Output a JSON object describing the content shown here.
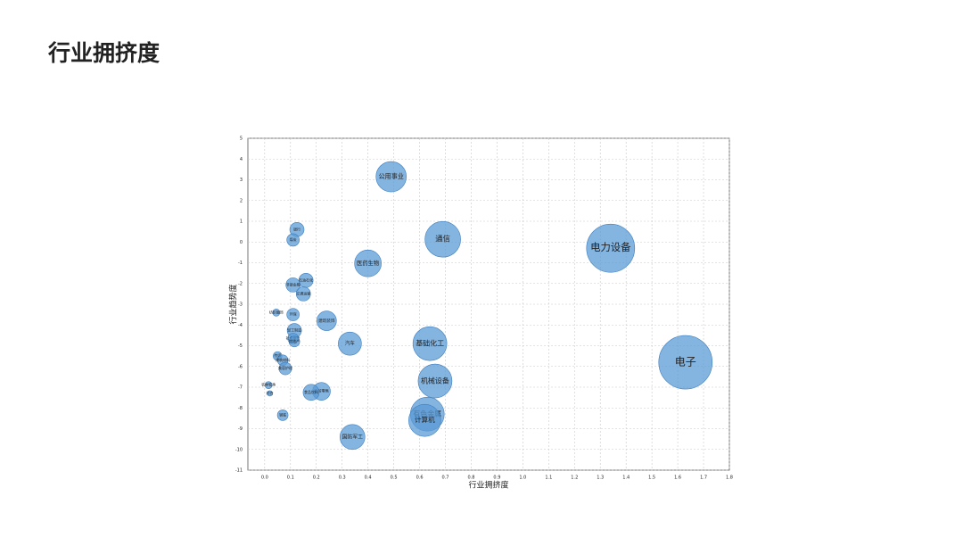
{
  "chart_data": {
    "type": "bubble",
    "title": "行业拥挤度",
    "xlabel": "行业拥挤度",
    "ylabel": "行业趋势度",
    "color": "#5b9bd5",
    "grid": true,
    "xlim": [
      -0.065,
      1.8
    ],
    "ylim": [
      -11,
      5
    ],
    "xticks": [
      {
        "value": 0,
        "label": "0.0"
      },
      0.1,
      0.2,
      0.3,
      0.4,
      0.5,
      0.6,
      0.7,
      0.8,
      0.9,
      {
        "value": 1,
        "label": "1.0"
      },
      1.1,
      1.2,
      1.3,
      1.4,
      1.5,
      1.6,
      1.7,
      1.8
    ],
    "yticks": [
      -11,
      -10,
      -9,
      -8,
      -7,
      -6,
      -5,
      -4,
      -3,
      -2,
      -1,
      0,
      1,
      2,
      3,
      4,
      5
    ],
    "categories": [
      "公用事业",
      "通信",
      "电力设备",
      "电子",
      "医药生物",
      "基础化工",
      "机械设备",
      "有色金属",
      "计算机",
      "国防军工",
      "汽车",
      "建筑装饰",
      "商贸零售",
      "食品饮料",
      "银行",
      "煤炭",
      "石油石化",
      "非银金融",
      "交通运输",
      "环保",
      "纺织服饰",
      "轻工制造",
      "社会服务",
      "房地产",
      "传媒",
      "建筑材料",
      "美容护理",
      "农林牧渔",
      "综合",
      "钢铁"
    ],
    "x": [
      0.49,
      0.69,
      1.34,
      1.63,
      0.4,
      0.64,
      0.66,
      0.63,
      0.62,
      0.34,
      0.33,
      0.24,
      0.22,
      0.18,
      0.125,
      0.11,
      0.16,
      0.11,
      0.15,
      0.11,
      0.045,
      0.115,
      0.11,
      0.115,
      0.05,
      0.07,
      0.08,
      0.015,
      0.02,
      0.07
    ],
    "values": [
      3.15,
      0.13,
      -0.3,
      -5.8,
      -1.03,
      -4.9,
      -6.7,
      -8.3,
      -8.6,
      -9.4,
      -4.9,
      -3.8,
      -7.2,
      -7.25,
      0.6,
      0.1,
      -1.85,
      -2.07,
      -2.5,
      -3.5,
      -3.4,
      -4.27,
      -4.65,
      -4.8,
      -5.5,
      -5.7,
      -6.1,
      -6.9,
      -7.3,
      -8.35
    ],
    "sizes": [
      17,
      20,
      27,
      30,
      15,
      19,
      19,
      19,
      18,
      14,
      13,
      11,
      10,
      9,
      8,
      7,
      8,
      8,
      8,
      7,
      4,
      8,
      6,
      6,
      5,
      6,
      7,
      4,
      3,
      6
    ]
  }
}
